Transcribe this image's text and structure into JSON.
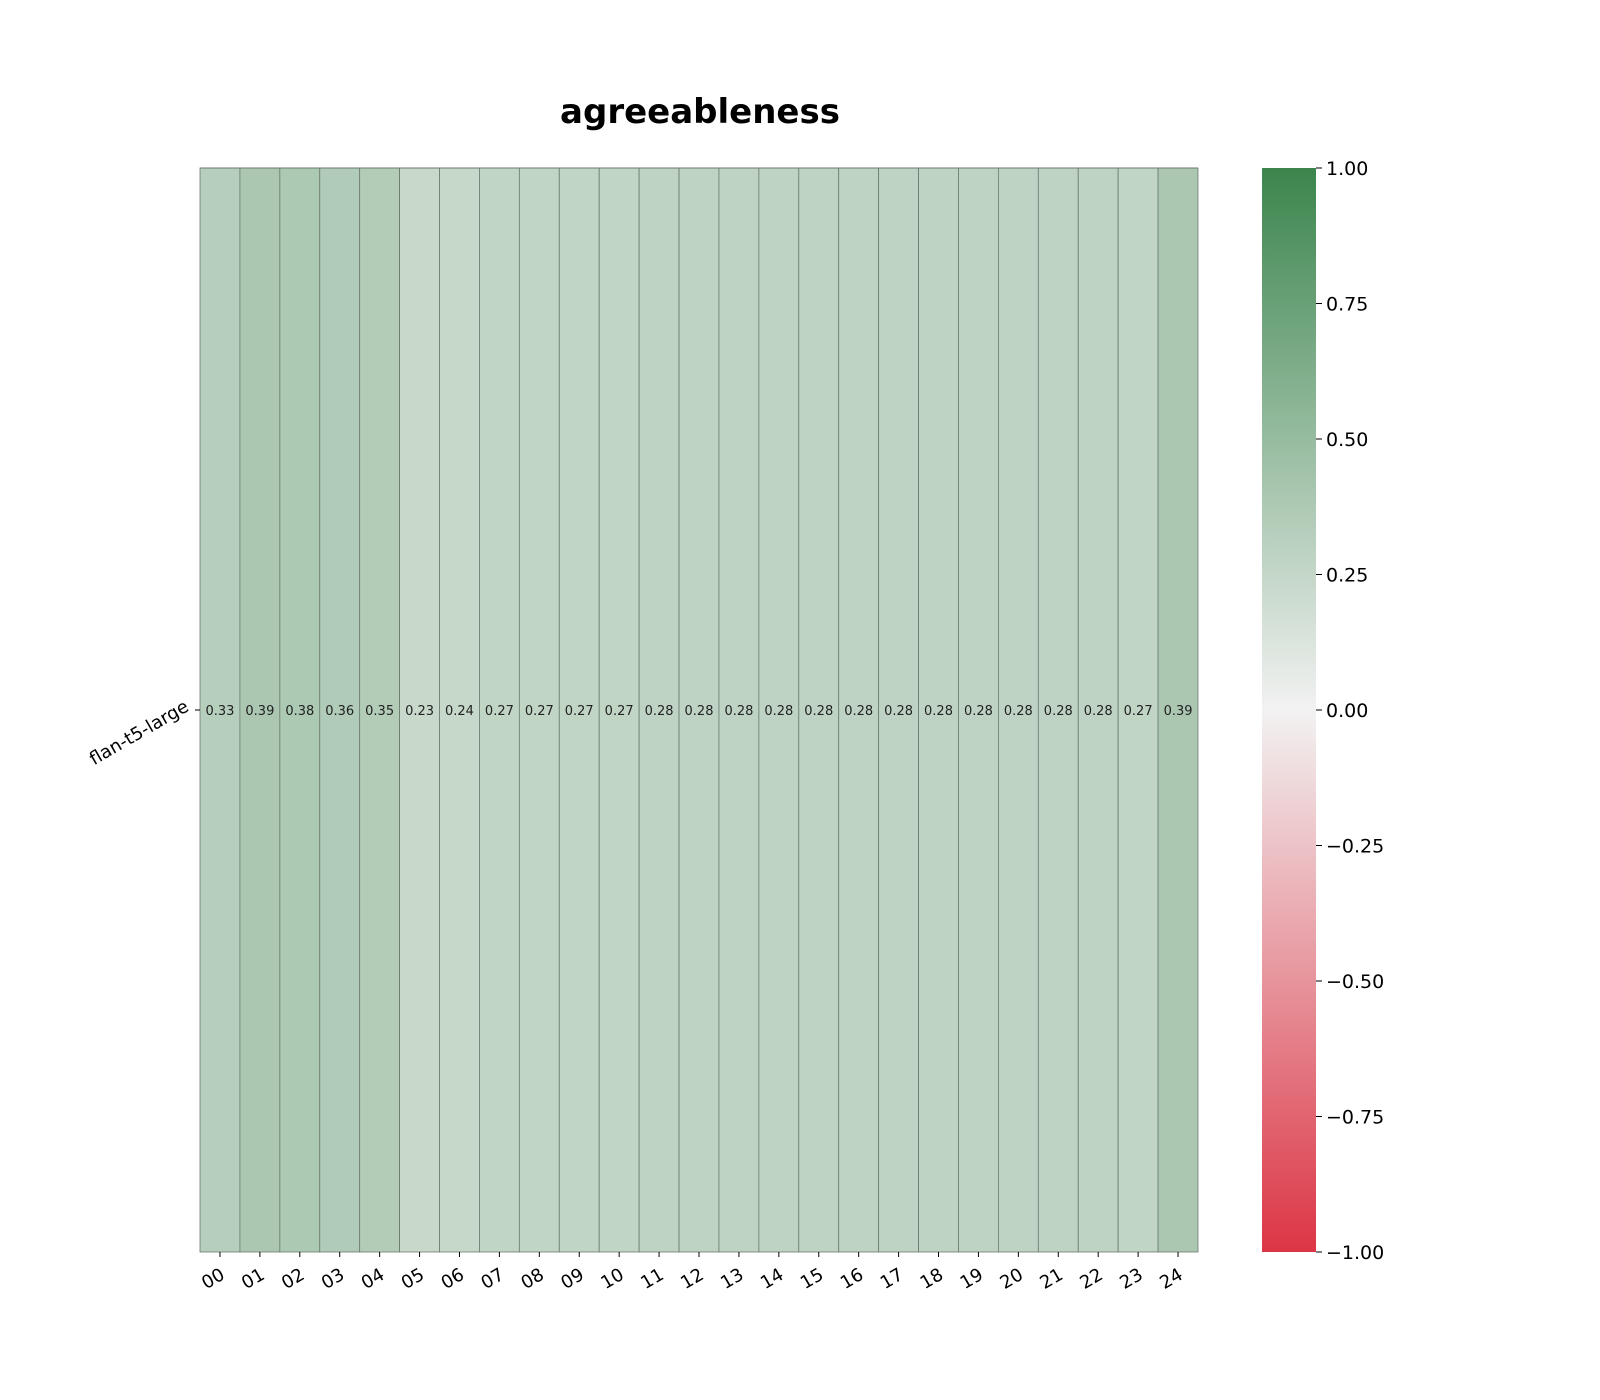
{
  "chart_data": {
    "type": "heatmap",
    "title": "agreeableness",
    "xlabel": "",
    "ylabel": "",
    "rows": [
      "flan-t5-large"
    ],
    "columns": [
      "00",
      "01",
      "02",
      "03",
      "04",
      "05",
      "06",
      "07",
      "08",
      "09",
      "10",
      "11",
      "12",
      "13",
      "14",
      "15",
      "16",
      "17",
      "18",
      "19",
      "20",
      "21",
      "22",
      "23",
      "24"
    ],
    "values": [
      [
        0.33,
        0.39,
        0.38,
        0.36,
        0.35,
        0.23,
        0.24,
        0.27,
        0.27,
        0.27,
        0.27,
        0.28,
        0.28,
        0.28,
        0.28,
        0.28,
        0.28,
        0.28,
        0.28,
        0.28,
        0.28,
        0.28,
        0.28,
        0.27,
        0.39
      ]
    ],
    "value_labels": [
      [
        "0.33",
        "0.39",
        "0.38",
        "0.36",
        "0.35",
        "0.23",
        "0.24",
        "0.27",
        "0.27",
        "0.27",
        "0.27",
        "0.28",
        "0.28",
        "0.28",
        "0.28",
        "0.28",
        "0.28",
        "0.28",
        "0.28",
        "0.28",
        "0.28",
        "0.28",
        "0.28",
        "0.27",
        "0.39"
      ]
    ],
    "colorbar": {
      "range": [
        -1.0,
        1.0
      ],
      "ticks": [
        1.0,
        0.75,
        0.5,
        0.25,
        0.0,
        -0.25,
        -0.5,
        -0.75,
        -1.0
      ],
      "tick_labels": [
        "1.00",
        "0.75",
        "0.50",
        "0.25",
        "0.00",
        "−0.25",
        "−0.50",
        "−0.75",
        "−1.00"
      ],
      "colors": {
        "negative": "#dc3545",
        "mid": "#f2f2f2",
        "positive": "#3b854d"
      }
    },
    "grid": true,
    "legend": "right"
  }
}
